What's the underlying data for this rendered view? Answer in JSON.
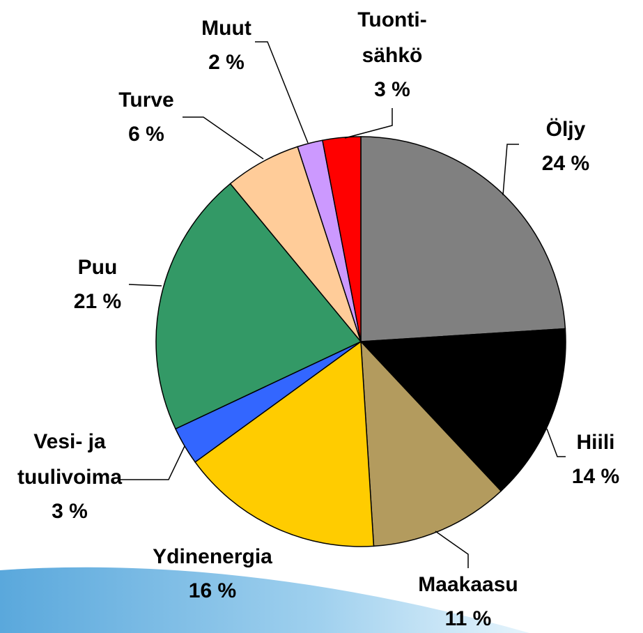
{
  "chart_data": {
    "type": "pie",
    "categories": [
      "Öljy",
      "Hiili",
      "Maakaasu",
      "Ydinenergia",
      "Vesi- ja\ntuulivoima",
      "Puu",
      "Turve",
      "Muut",
      "Tuonti-\nsähkö"
    ],
    "values": [
      24,
      14,
      11,
      16,
      3,
      21,
      6,
      2,
      3
    ],
    "value_labels": [
      "24 %",
      "14 %",
      "11 %",
      "16 %",
      "3 %",
      "21 %",
      "6 %",
      "2 %",
      "3 %"
    ],
    "colors": [
      "#808080",
      "#000000",
      "#b39b5e",
      "#ffcc00",
      "#3366ff",
      "#339966",
      "#ffcc99",
      "#cc99ff",
      "#ff0000"
    ]
  }
}
